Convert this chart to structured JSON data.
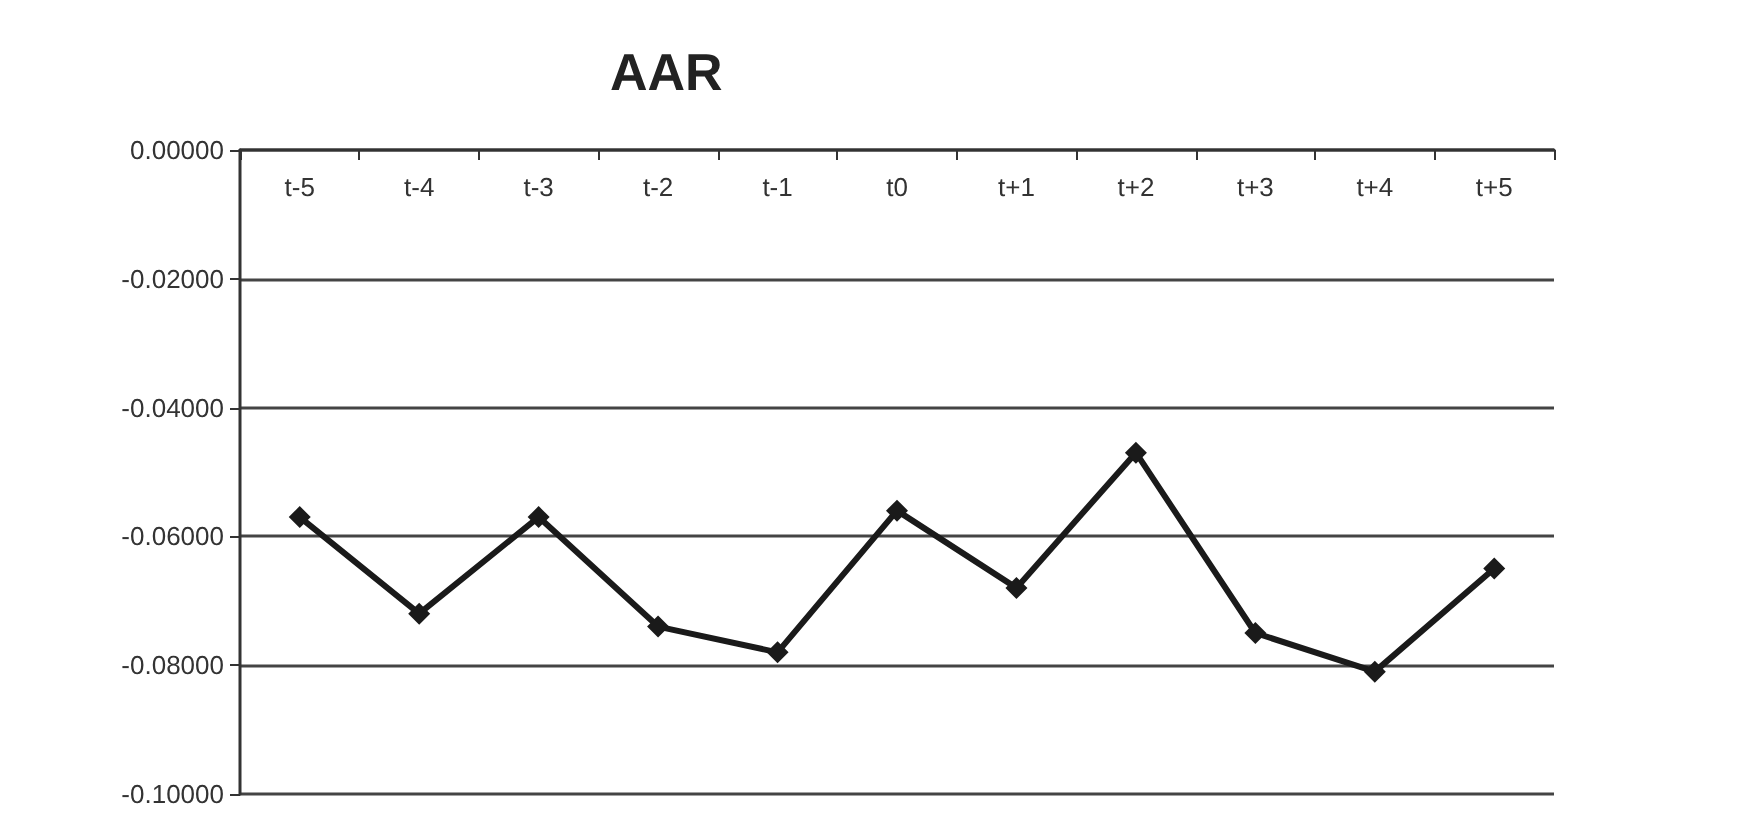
{
  "chart_data": {
    "type": "line",
    "title": "AAR",
    "categories": [
      "t-5",
      "t-4",
      "t-3",
      "t-2",
      "t-1",
      "t0",
      "t+1",
      "t+2",
      "t+3",
      "t+4",
      "t+5"
    ],
    "series": [
      {
        "color": "#1a1a1a",
        "values": [
          -0.057,
          -0.072,
          -0.057,
          -0.074,
          -0.078,
          -0.056,
          -0.068,
          -0.047,
          -0.075,
          -0.081,
          -0.065
        ]
      }
    ],
    "ylim": [
      -0.1,
      0
    ],
    "yticks": [
      {
        "value": 0,
        "label": "0.00000"
      },
      {
        "value": -0.02,
        "label": "-0.02000"
      },
      {
        "value": -0.04,
        "label": "-0.04000"
      },
      {
        "value": -0.06,
        "label": "-0.06000"
      },
      {
        "value": -0.08,
        "label": "-0.08000"
      },
      {
        "value": -0.1,
        "label": "-0.10000"
      }
    ],
    "grid": "y",
    "marker": "diamond",
    "line_style": "solid"
  }
}
